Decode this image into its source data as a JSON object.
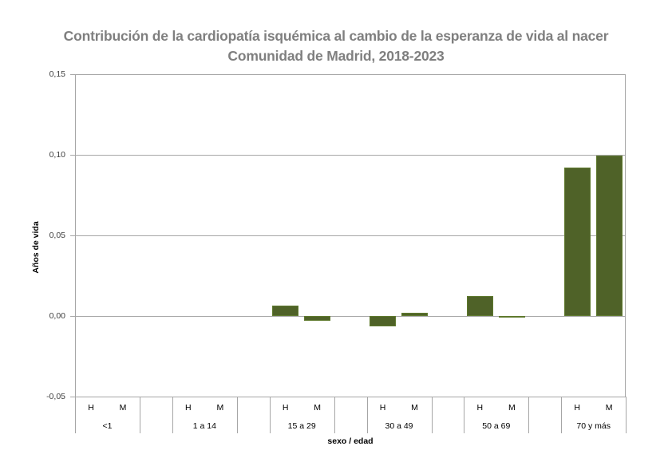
{
  "chart_data": {
    "type": "bar",
    "title": "Contribución de la cardiopatía isquémica al cambio de la esperanza de vida al nacer",
    "subtitle": "Comunidad de Madrid, 2018-2023",
    "xlabel": "sexo / edad",
    "ylabel": "Años de vida",
    "ylim": [
      -0.05,
      0.15
    ],
    "yticks": [
      "0,15",
      "0,10",
      "0,05",
      "0,00",
      "-0,05"
    ],
    "ytick_values": [
      0.15,
      0.1,
      0.05,
      0.0,
      -0.05
    ],
    "grid": true,
    "legend": null,
    "color": "#4f6228",
    "categories": [
      "<1",
      "1 a 14",
      "15 a 29",
      "30 a 49",
      "50 a 69",
      "70 y más"
    ],
    "subcategories": [
      "H",
      "M"
    ],
    "series": [
      {
        "name": "H",
        "values": [
          0.0,
          0.0,
          0.0064,
          -0.0064,
          0.0124,
          0.092
        ]
      },
      {
        "name": "M",
        "values": [
          0.0,
          0.0,
          -0.003,
          0.002,
          -0.001,
          0.0995
        ]
      }
    ]
  }
}
